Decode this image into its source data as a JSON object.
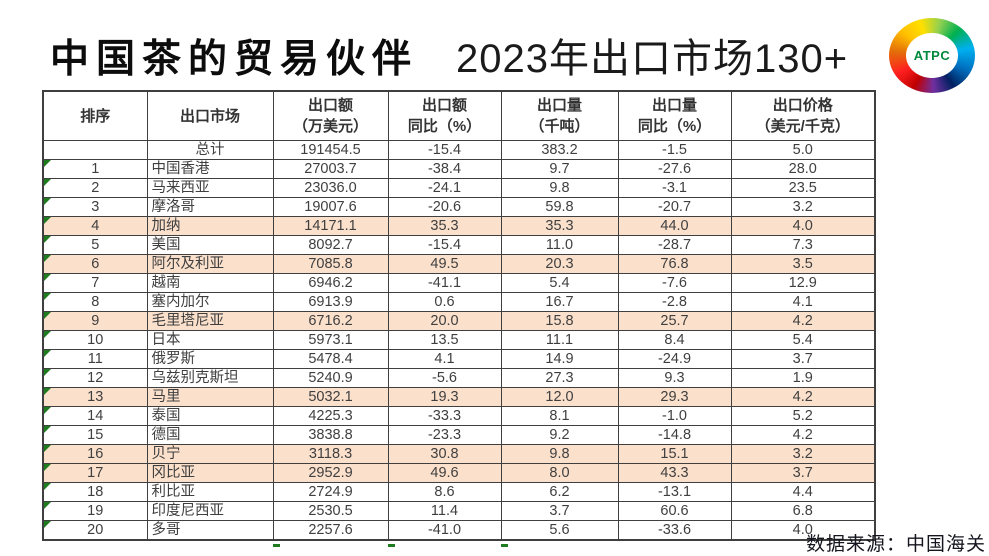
{
  "header": {
    "title_bold": "中国茶的贸易伙伴",
    "title_light": "2023年出口市场130+",
    "logo_text": "ATPC"
  },
  "table": {
    "columns": [
      {
        "lines": [
          "排序"
        ]
      },
      {
        "lines": [
          "出口市场"
        ]
      },
      {
        "lines": [
          "出口额",
          "（万美元）"
        ]
      },
      {
        "lines": [
          "出口额",
          "同比（%）"
        ]
      },
      {
        "lines": [
          "出口量",
          "（千吨）"
        ]
      },
      {
        "lines": [
          "出口量",
          "同比（%）"
        ]
      },
      {
        "lines": [
          "出口价格",
          "（美元/千克）"
        ]
      }
    ],
    "rows": [
      {
        "rank": "",
        "market": "总计",
        "export_value": "191454.5",
        "value_yoy": "-15.4",
        "volume": "383.2",
        "volume_yoy": "-1.5",
        "price": "5.0",
        "highlight": false,
        "marker": false
      },
      {
        "rank": "1",
        "market": "中国香港",
        "export_value": "27003.7",
        "value_yoy": "-38.4",
        "volume": "9.7",
        "volume_yoy": "-27.6",
        "price": "28.0",
        "highlight": false,
        "marker": true
      },
      {
        "rank": "2",
        "market": "马来西亚",
        "export_value": "23036.0",
        "value_yoy": "-24.1",
        "volume": "9.8",
        "volume_yoy": "-3.1",
        "price": "23.5",
        "highlight": false,
        "marker": true
      },
      {
        "rank": "3",
        "market": "摩洛哥",
        "export_value": "19007.6",
        "value_yoy": "-20.6",
        "volume": "59.8",
        "volume_yoy": "-20.7",
        "price": "3.2",
        "highlight": false,
        "marker": true
      },
      {
        "rank": "4",
        "market": "加纳",
        "export_value": "14171.1",
        "value_yoy": "35.3",
        "volume": "35.3",
        "volume_yoy": "44.0",
        "price": "4.0",
        "highlight": true,
        "marker": true
      },
      {
        "rank": "5",
        "market": "美国",
        "export_value": "8092.7",
        "value_yoy": "-15.4",
        "volume": "11.0",
        "volume_yoy": "-28.7",
        "price": "7.3",
        "highlight": false,
        "marker": true
      },
      {
        "rank": "6",
        "market": "阿尔及利亚",
        "export_value": "7085.8",
        "value_yoy": "49.5",
        "volume": "20.3",
        "volume_yoy": "76.8",
        "price": "3.5",
        "highlight": true,
        "marker": true
      },
      {
        "rank": "7",
        "market": "越南",
        "export_value": "6946.2",
        "value_yoy": "-41.1",
        "volume": "5.4",
        "volume_yoy": "-7.6",
        "price": "12.9",
        "highlight": false,
        "marker": true
      },
      {
        "rank": "8",
        "market": "塞内加尔",
        "export_value": "6913.9",
        "value_yoy": "0.6",
        "volume": "16.7",
        "volume_yoy": "-2.8",
        "price": "4.1",
        "highlight": false,
        "marker": true
      },
      {
        "rank": "9",
        "market": "毛里塔尼亚",
        "export_value": "6716.2",
        "value_yoy": "20.0",
        "volume": "15.8",
        "volume_yoy": "25.7",
        "price": "4.2",
        "highlight": true,
        "marker": true
      },
      {
        "rank": "10",
        "market": "日本",
        "export_value": "5973.1",
        "value_yoy": "13.5",
        "volume": "11.1",
        "volume_yoy": "8.4",
        "price": "5.4",
        "highlight": false,
        "marker": true
      },
      {
        "rank": "11",
        "market": "俄罗斯",
        "export_value": "5478.4",
        "value_yoy": "4.1",
        "volume": "14.9",
        "volume_yoy": "-24.9",
        "price": "3.7",
        "highlight": false,
        "marker": true
      },
      {
        "rank": "12",
        "market": "乌兹别克斯坦",
        "export_value": "5240.9",
        "value_yoy": "-5.6",
        "volume": "27.3",
        "volume_yoy": "9.3",
        "price": "1.9",
        "highlight": false,
        "marker": true
      },
      {
        "rank": "13",
        "market": "马里",
        "export_value": "5032.1",
        "value_yoy": "19.3",
        "volume": "12.0",
        "volume_yoy": "29.3",
        "price": "4.2",
        "highlight": true,
        "marker": true
      },
      {
        "rank": "14",
        "market": "泰国",
        "export_value": "4225.3",
        "value_yoy": "-33.3",
        "volume": "8.1",
        "volume_yoy": "-1.0",
        "price": "5.2",
        "highlight": false,
        "marker": true
      },
      {
        "rank": "15",
        "market": "德国",
        "export_value": "3838.8",
        "value_yoy": "-23.3",
        "volume": "9.2",
        "volume_yoy": "-14.8",
        "price": "4.2",
        "highlight": false,
        "marker": true
      },
      {
        "rank": "16",
        "market": "贝宁",
        "export_value": "3118.3",
        "value_yoy": "30.8",
        "volume": "9.8",
        "volume_yoy": "15.1",
        "price": "3.2",
        "highlight": true,
        "marker": true
      },
      {
        "rank": "17",
        "market": "冈比亚",
        "export_value": "2952.9",
        "value_yoy": "49.6",
        "volume": "8.0",
        "volume_yoy": "43.3",
        "price": "3.7",
        "highlight": true,
        "marker": true
      },
      {
        "rank": "18",
        "market": "利比亚",
        "export_value": "2724.9",
        "value_yoy": "8.6",
        "volume": "6.2",
        "volume_yoy": "-13.1",
        "price": "4.4",
        "highlight": false,
        "marker": true
      },
      {
        "rank": "19",
        "market": "印度尼西亚",
        "export_value": "2530.5",
        "value_yoy": "11.4",
        "volume": "3.7",
        "volume_yoy": "60.6",
        "price": "6.8",
        "highlight": false,
        "marker": true
      },
      {
        "rank": "20",
        "market": "多哥",
        "export_value": "2257.6",
        "value_yoy": "-41.0",
        "volume": "5.6",
        "volume_yoy": "-33.6",
        "price": "4.0",
        "highlight": false,
        "marker": true
      }
    ]
  },
  "footer": {
    "source": "数据来源：中国海关"
  },
  "colors": {
    "highlight_row": "#FBE0CC",
    "marker_green": "#1E7B1E",
    "border": "#3F3F3F",
    "text": "#3F3F3F",
    "logo_text_color": "#008A3E",
    "logo_ring": [
      "#C00000",
      "#FF2020",
      "#E36C09",
      "#FFC000",
      "#FFE000",
      "#92D050",
      "#00B050",
      "#00B0F0",
      "#0070C0",
      "#002060",
      "#7030A0",
      "#C00000"
    ]
  }
}
